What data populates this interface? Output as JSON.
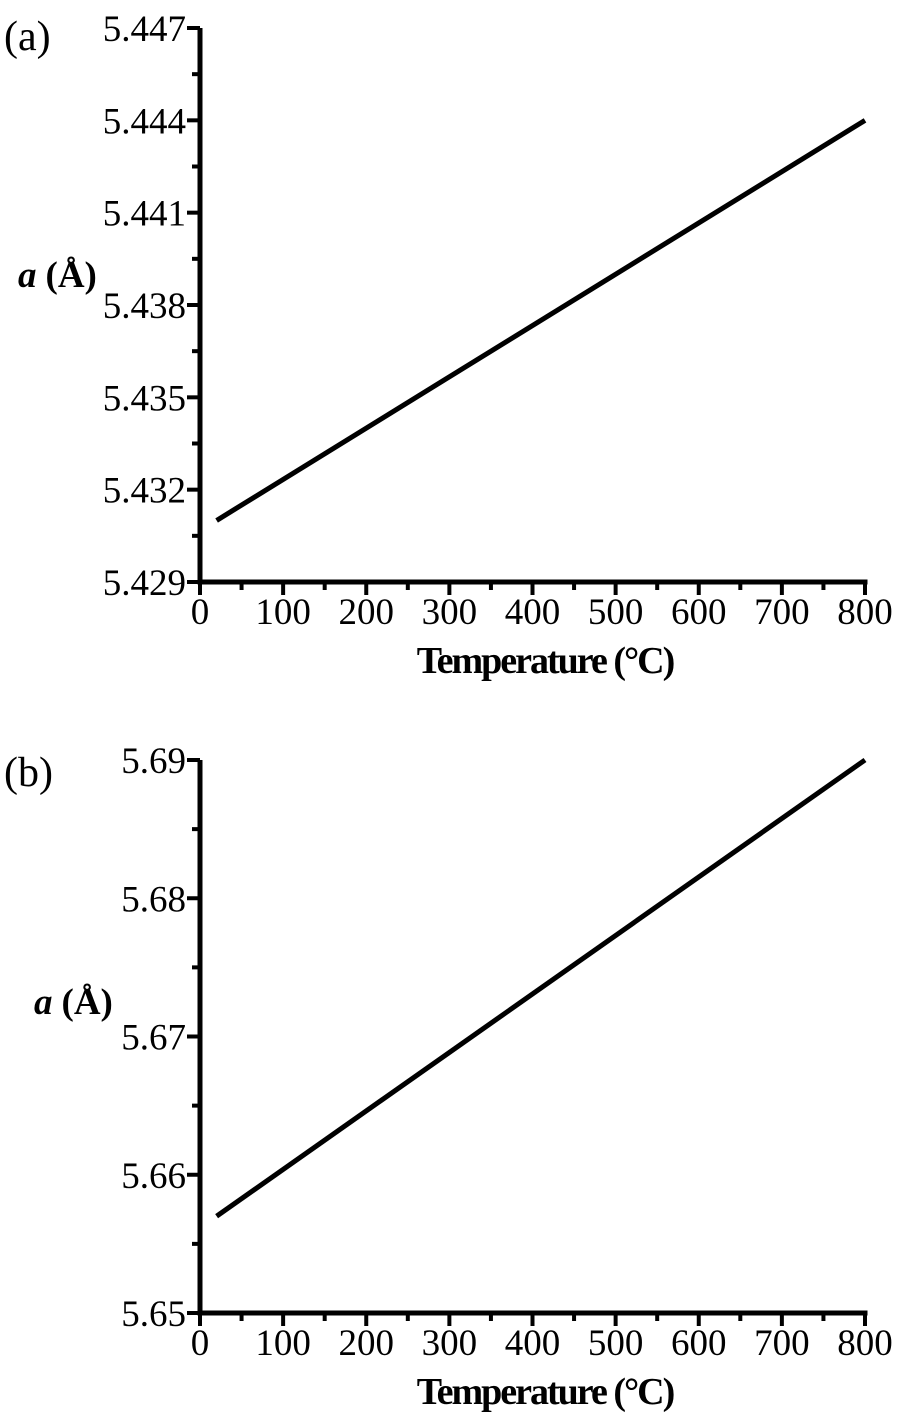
{
  "chart_data": [
    {
      "type": "line",
      "panel_label": "(a)",
      "title": "",
      "xlabel": "Temperature (°C)",
      "ylabel": "a (Å)",
      "ylabel_parts": {
        "var": "a",
        "unit": "(Å)"
      },
      "xlim": [
        0,
        800
      ],
      "ylim": [
        5.429,
        5.447
      ],
      "x_ticks": [
        0,
        100,
        200,
        300,
        400,
        500,
        600,
        700,
        800
      ],
      "x_tick_labels": [
        "0",
        "100",
        "200",
        "300",
        "400",
        "500",
        "600",
        "700",
        "800"
      ],
      "x_minor_ticks": [
        50,
        150,
        250,
        350,
        450,
        550,
        650,
        750
      ],
      "y_ticks": [
        5.429,
        5.432,
        5.435,
        5.438,
        5.441,
        5.444,
        5.447
      ],
      "y_tick_labels": [
        "5.429",
        "5.432",
        "5.435",
        "5.438",
        "5.441",
        "5.444",
        "5.447"
      ],
      "y_minor_ticks": [
        5.4305,
        5.4335,
        5.4365,
        5.4395,
        5.4425,
        5.4455
      ],
      "grid": false,
      "legend": "none",
      "line_color": "#000000",
      "series": [
        {
          "name": "a",
          "x": [
            20,
            800
          ],
          "y": [
            5.431,
            5.444
          ]
        }
      ]
    },
    {
      "type": "line",
      "panel_label": "(b)",
      "title": "",
      "xlabel": "Temperature (°C)",
      "ylabel": "a (Å)",
      "ylabel_parts": {
        "var": "a",
        "unit": "(Å)"
      },
      "xlim": [
        0,
        800
      ],
      "ylim": [
        5.65,
        5.69
      ],
      "x_ticks": [
        0,
        100,
        200,
        300,
        400,
        500,
        600,
        700,
        800
      ],
      "x_tick_labels": [
        "0",
        "100",
        "200",
        "300",
        "400",
        "500",
        "600",
        "700",
        "800"
      ],
      "x_minor_ticks": [
        50,
        150,
        250,
        350,
        450,
        550,
        650,
        750
      ],
      "y_ticks": [
        5.65,
        5.66,
        5.67,
        5.68,
        5.69
      ],
      "y_tick_labels": [
        "5.65",
        "5.66",
        "5.67",
        "5.68",
        "5.69"
      ],
      "y_minor_ticks": [
        5.655,
        5.665,
        5.675,
        5.685
      ],
      "grid": false,
      "legend": "none",
      "line_color": "#000000",
      "series": [
        {
          "name": "a",
          "x": [
            20,
            800
          ],
          "y": [
            5.657,
            5.69
          ]
        }
      ]
    }
  ]
}
